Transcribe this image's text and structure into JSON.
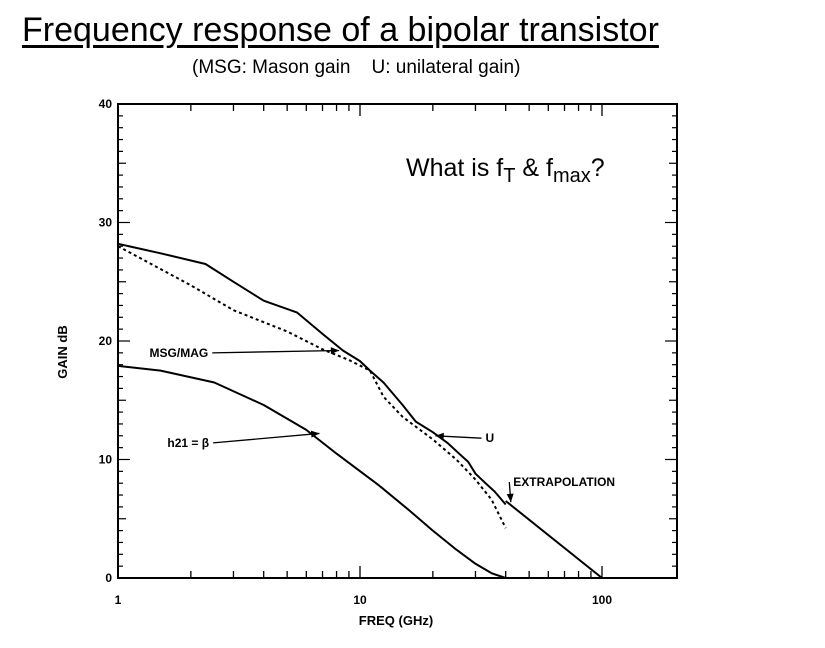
{
  "header": {
    "title": "Frequency response of a bipolar transistor",
    "subtitle": "(MSG: Mason gain    U: unilateral gain)"
  },
  "question": {
    "prefix": "What is f",
    "sub1": "T",
    "middle": " & f",
    "sub2": "max",
    "suffix": "?"
  },
  "chart_data": {
    "type": "line",
    "xscale": "log",
    "xlim": [
      1,
      200
    ],
    "ylim": [
      0,
      40
    ],
    "xlabel": "FREQ (GHz)",
    "ylabel": "GAIN dB",
    "grid": false,
    "x_tick_labels": [
      "1",
      "10",
      "100"
    ],
    "y_tick_labels": [
      "0",
      "10",
      "20",
      "30",
      "40"
    ],
    "series": [
      {
        "name": "U",
        "style": "solid",
        "points": [
          [
            1,
            28.2
          ],
          [
            1.5,
            27.4
          ],
          [
            2.3,
            26.5
          ],
          [
            3,
            25
          ],
          [
            4,
            23.4
          ],
          [
            5.5,
            22.4
          ],
          [
            7,
            20.6
          ],
          [
            8.5,
            19.2
          ],
          [
            10,
            18.3
          ],
          [
            11,
            17.5
          ],
          [
            12.5,
            16.5
          ],
          [
            15,
            14.6
          ],
          [
            17,
            13.2
          ],
          [
            20,
            12.3
          ],
          [
            23,
            11.4
          ],
          [
            26,
            10.4
          ],
          [
            28,
            9.8
          ],
          [
            30,
            8.8
          ],
          [
            33,
            8
          ],
          [
            36,
            7.3
          ],
          [
            40,
            6.2
          ]
        ]
      },
      {
        "name": "MSG/MAG",
        "style": "dashed",
        "points": [
          [
            1,
            28
          ],
          [
            2,
            24.7
          ],
          [
            3,
            22.6
          ],
          [
            5,
            20.8
          ],
          [
            7,
            19.3
          ],
          [
            9,
            18.4
          ],
          [
            11,
            17.5
          ],
          [
            12.5,
            15.3
          ],
          [
            15,
            13.6
          ],
          [
            20,
            11.7
          ],
          [
            25,
            10
          ],
          [
            30,
            8.3
          ],
          [
            35,
            6.6
          ],
          [
            40,
            4.2
          ]
        ]
      },
      {
        "name": "h21 = β",
        "style": "solid",
        "points": [
          [
            1,
            17.9
          ],
          [
            1.5,
            17.5
          ],
          [
            2.5,
            16.5
          ],
          [
            4,
            14.6
          ],
          [
            6,
            12.5
          ],
          [
            8,
            10.5
          ],
          [
            12,
            7.8
          ],
          [
            16,
            5.7
          ],
          [
            20,
            4
          ],
          [
            25,
            2.4
          ],
          [
            30,
            1.2
          ],
          [
            35,
            0.4
          ],
          [
            40,
            0
          ]
        ]
      },
      {
        "name": "EXTRAPOLATION",
        "style": "solid",
        "points": [
          [
            40,
            6.5
          ],
          [
            100,
            0
          ]
        ]
      }
    ],
    "annotations": [
      {
        "label": "MSG/MAG",
        "text_at": [
          1.35,
          19
        ],
        "arrow_to": [
          8.2,
          19.2
        ]
      },
      {
        "label": "h21 = β",
        "text_at": [
          1.6,
          11.4
        ],
        "arrow_to": [
          6.8,
          12.2
        ]
      },
      {
        "label": "U",
        "text_at": [
          33,
          11.8
        ],
        "arrow_to": [
          20.5,
          12
        ]
      },
      {
        "label": "EXTRAPOLATION",
        "text_at": [
          43,
          8.1
        ],
        "arrow_to": [
          42,
          6.4
        ]
      }
    ]
  }
}
